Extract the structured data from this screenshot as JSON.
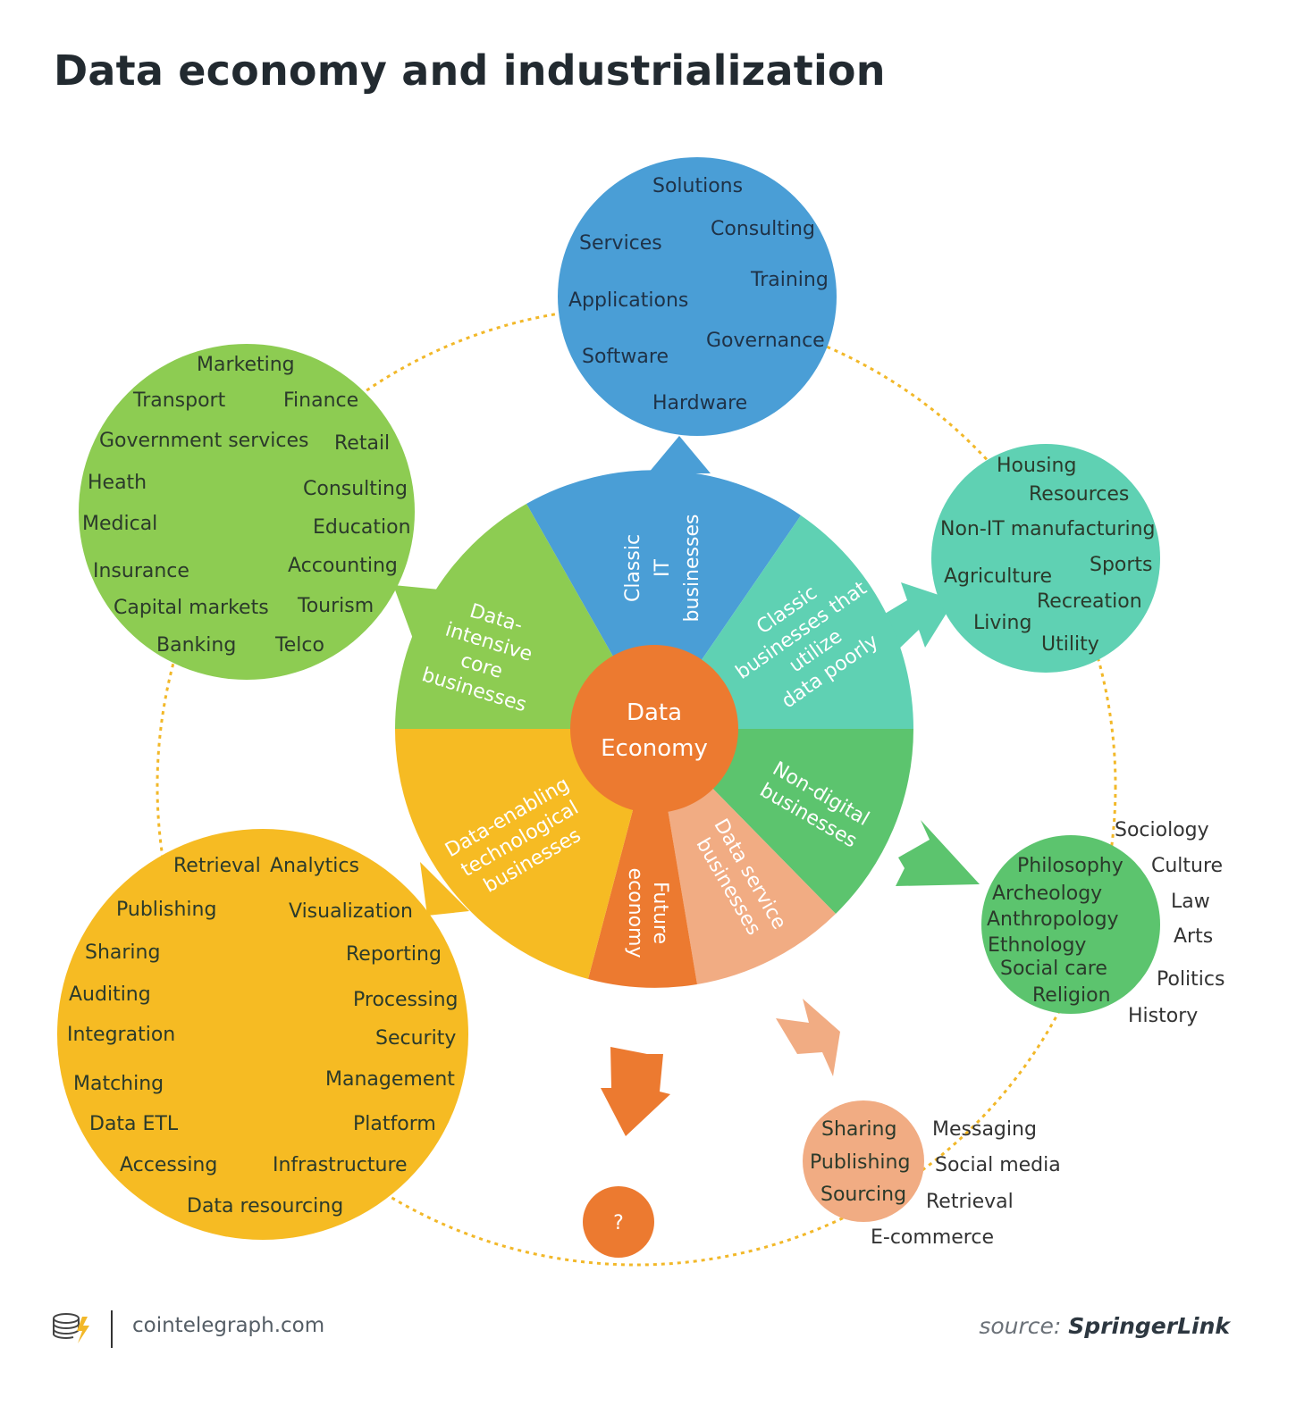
{
  "title": "Data economy and industrialization",
  "colors": {
    "blue": "#4a9ed6",
    "green": "#8dcc52",
    "teal": "#5fd1b3",
    "bright_green": "#5cc46e",
    "yellow": "#f6bb23",
    "orange": "#ec7a30",
    "salmon": "#f1ac83",
    "connector": "#f2b829"
  },
  "center": {
    "line1": "Data",
    "line2": "Economy"
  },
  "segments": [
    {
      "id": "classic-it",
      "lines": [
        "Classic",
        "IT",
        "businesses"
      ]
    },
    {
      "id": "classic-poor",
      "lines": [
        "Classic",
        "businesses that",
        "utilize",
        "data poorly"
      ]
    },
    {
      "id": "non-digital",
      "lines": [
        "Non-digital",
        "businesses"
      ]
    },
    {
      "id": "data-service",
      "lines": [
        "Data service",
        "businesses"
      ]
    },
    {
      "id": "future",
      "lines": [
        "Future",
        "economy"
      ]
    },
    {
      "id": "data-enabling",
      "lines": [
        "Data-enabling",
        "technological",
        "businesses"
      ]
    },
    {
      "id": "data-intensive",
      "lines": [
        "Data-",
        "intensive",
        "core",
        "businesses"
      ]
    }
  ],
  "clusters": {
    "it": [
      "Solutions",
      "Consulting",
      "Services",
      "Training",
      "Applications",
      "Governance",
      "Software",
      "Hardware"
    ],
    "core": [
      "Marketing",
      "Transport",
      "Finance",
      "Government services",
      "Retail",
      "Heath",
      "Consulting",
      "Medical",
      "Education",
      "Insurance",
      "Accounting",
      "Capital markets",
      "Tourism",
      "Banking",
      "Telco"
    ],
    "poor": [
      "Housing",
      "Resources",
      "Non-IT manufacturing",
      "Agriculture",
      "Sports",
      "Recreation",
      "Living",
      "Utility"
    ],
    "nondigital_inner": [
      "Philosophy",
      "Archeology",
      "Anthropology",
      "Ethnology",
      "Social care",
      "Religion"
    ],
    "nondigital_outer": [
      "Sociology",
      "Culture",
      "Law",
      "Arts",
      "Politics",
      "History"
    ],
    "enabling": [
      "Retrieval",
      "Analytics",
      "Publishing",
      "Visualization",
      "Sharing",
      "Reporting",
      "Auditing",
      "Processing",
      "Integration",
      "Security",
      "Matching",
      "Management",
      "Data ETL",
      "Platform",
      "Accessing",
      "Infrastructure",
      "Data resourcing"
    ],
    "service_inner": [
      "Sharing",
      "Publishing",
      "Sourcing"
    ],
    "service_outer": [
      "Messaging",
      "Social media",
      "Retrieval",
      "E-commerce"
    ]
  },
  "future_symbol": "?",
  "footer": {
    "domain": "cointelegraph.com",
    "source_prefix": "source:",
    "source_name": "SpringerLink"
  }
}
